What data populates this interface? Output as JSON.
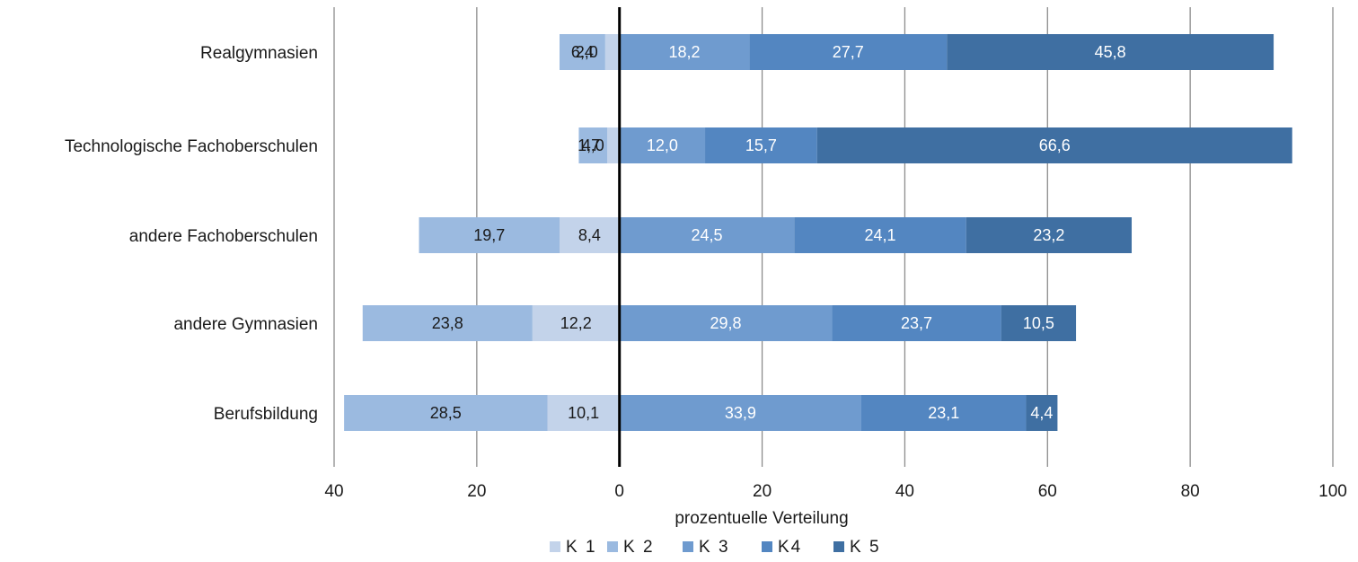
{
  "chart_data": {
    "type": "bar",
    "orientation": "horizontal",
    "stacking": "diverging",
    "title": "",
    "xlabel": "prozentuelle Verteilung",
    "ylabel": "",
    "xlim": [
      -40,
      100
    ],
    "x_ticks": [
      -40,
      -20,
      0,
      20,
      40,
      60,
      80,
      100
    ],
    "x_tick_labels": [
      "40",
      "20",
      "0",
      "20",
      "40",
      "60",
      "80",
      "100"
    ],
    "grid": true,
    "legend_position": "bottom",
    "categories": [
      "Realgymnasien",
      "Technologische Fachoberschulen",
      "andere Fachoberschulen",
      "andere Gymnasien",
      "Berufsbildung"
    ],
    "series": [
      {
        "name": "K 1",
        "direction": "negative",
        "color": "#c3d3ea",
        "label_color": "#1a1a1a",
        "values": [
          2.0,
          1.7,
          8.4,
          12.2,
          10.1
        ],
        "labels": [
          "2,0",
          "1,7",
          "8,4",
          "12,2",
          "10,1"
        ]
      },
      {
        "name": "K 2",
        "direction": "negative",
        "color": "#9bbae0",
        "label_color": "#1a1a1a",
        "values": [
          6.4,
          4.0,
          19.7,
          23.8,
          28.5
        ],
        "labels": [
          "6,4",
          "4,0",
          "19,7",
          "23,8",
          "28,5"
        ]
      },
      {
        "name": "K 3",
        "direction": "positive",
        "color": "#6f9bcf",
        "label_color": "#ffffff",
        "values": [
          18.2,
          12.0,
          24.5,
          29.8,
          33.9
        ],
        "labels": [
          "18,2",
          "12,0",
          "24,5",
          "29,8",
          "33,9"
        ]
      },
      {
        "name": "K4",
        "direction": "positive",
        "color": "#5386c1",
        "label_color": "#ffffff",
        "values": [
          27.7,
          15.7,
          24.1,
          23.7,
          23.1
        ],
        "labels": [
          "27,7",
          "15,7",
          "24,1",
          "23,7",
          "23,1"
        ]
      },
      {
        "name": "K 5",
        "direction": "positive",
        "color": "#3f6fa2",
        "label_color": "#ffffff",
        "values": [
          45.8,
          66.6,
          23.2,
          10.5,
          4.4
        ],
        "labels": [
          "45,8",
          "66,6",
          "23,2",
          "10,5",
          "4,4"
        ]
      }
    ]
  }
}
